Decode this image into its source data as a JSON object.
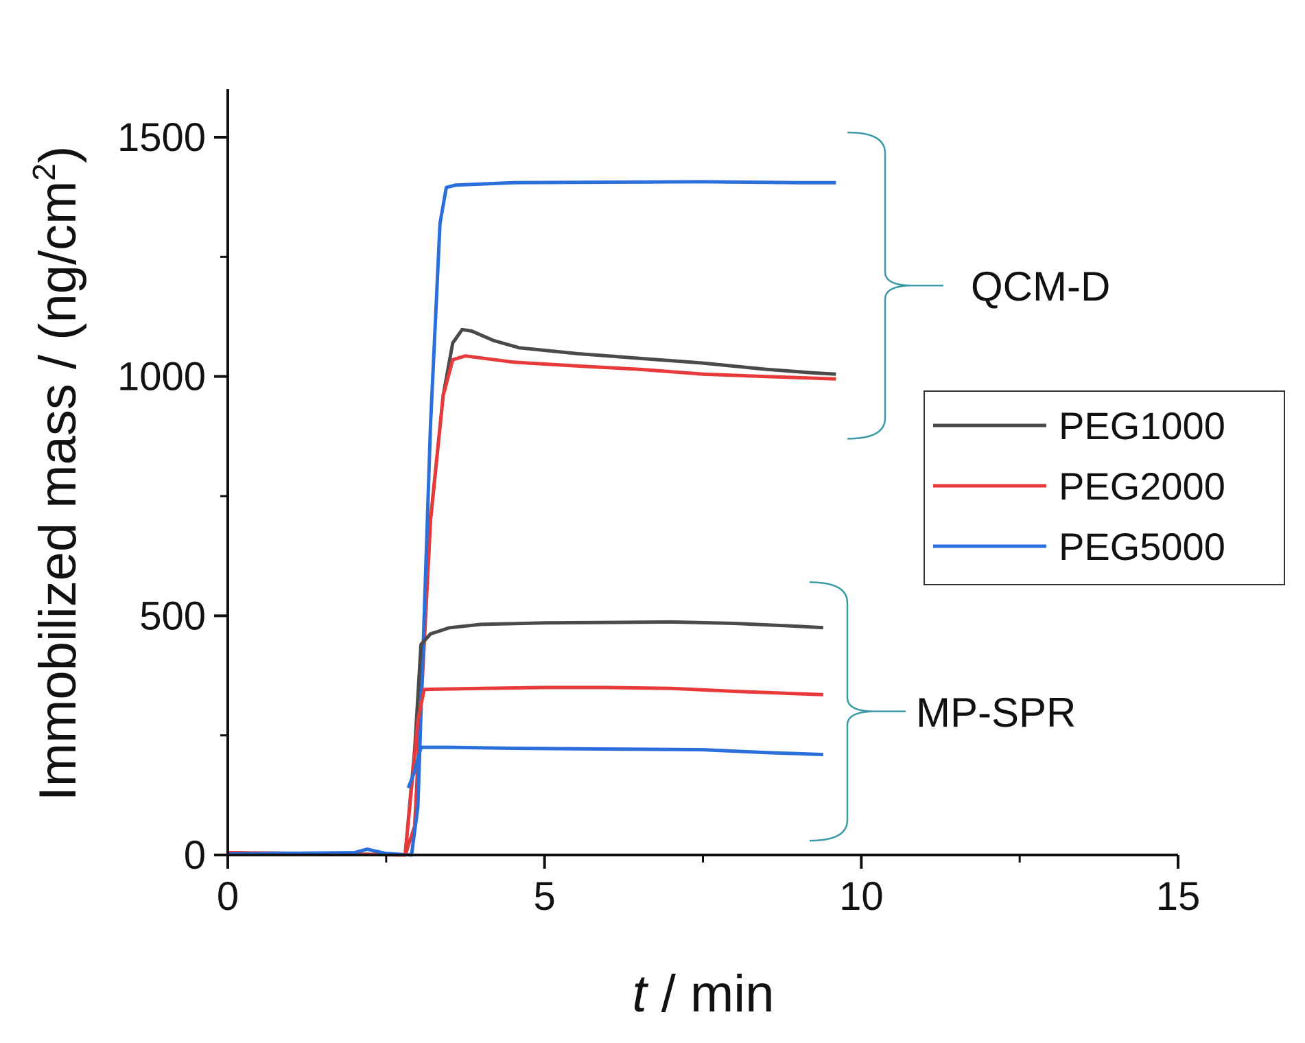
{
  "chart_data": {
    "type": "line",
    "title": "",
    "xlabel_italic": "t",
    "xlabel_rest": " / min",
    "ylabel_main": "Immobilized mass / (ng/cm",
    "ylabel_sup": "2",
    "ylabel_close": ")",
    "xlim": [
      0,
      15
    ],
    "ylim": [
      0,
      1500
    ],
    "x_ticks": [
      0,
      5,
      10,
      15
    ],
    "x_tick_labels": [
      "0",
      "5",
      "10",
      "15"
    ],
    "y_ticks": [
      0,
      500,
      1000,
      1500
    ],
    "y_tick_labels": [
      "0",
      "500",
      "1000",
      "1500"
    ],
    "grid": false,
    "legend_position": "right",
    "series": [
      {
        "name": "PEG1000",
        "method": "QCM-D",
        "color": "#4a4a4a",
        "points": [
          [
            0,
            5
          ],
          [
            2.0,
            2
          ],
          [
            2.8,
            0
          ],
          [
            2.95,
            60
          ],
          [
            3.2,
            700
          ],
          [
            3.4,
            960
          ],
          [
            3.55,
            1070
          ],
          [
            3.7,
            1098
          ],
          [
            3.85,
            1095
          ],
          [
            4.2,
            1075
          ],
          [
            4.6,
            1060
          ],
          [
            5.5,
            1048
          ],
          [
            6.5,
            1038
          ],
          [
            7.5,
            1028
          ],
          [
            8.5,
            1015
          ],
          [
            9.2,
            1008
          ],
          [
            9.6,
            1005
          ]
        ]
      },
      {
        "name": "PEG2000",
        "method": "QCM-D",
        "color": "#e83a3a",
        "points": [
          [
            0,
            5
          ],
          [
            1.0,
            3
          ],
          [
            2.8,
            0
          ],
          [
            2.95,
            60
          ],
          [
            3.2,
            700
          ],
          [
            3.4,
            960
          ],
          [
            3.55,
            1035
          ],
          [
            3.75,
            1043
          ],
          [
            4.5,
            1030
          ],
          [
            5.5,
            1022
          ],
          [
            6.5,
            1015
          ],
          [
            7.5,
            1005
          ],
          [
            8.5,
            1000
          ],
          [
            9.6,
            995
          ]
        ]
      },
      {
        "name": "PEG5000",
        "method": "QCM-D",
        "color": "#2a6fdb",
        "points": [
          [
            0,
            2
          ],
          [
            2.0,
            5
          ],
          [
            2.2,
            12
          ],
          [
            2.5,
            3
          ],
          [
            2.9,
            0
          ],
          [
            3.0,
            100
          ],
          [
            3.2,
            900
          ],
          [
            3.35,
            1320
          ],
          [
            3.45,
            1395
          ],
          [
            3.6,
            1400
          ],
          [
            4.5,
            1405
          ],
          [
            6.0,
            1406
          ],
          [
            7.5,
            1407
          ],
          [
            9.0,
            1405
          ],
          [
            9.6,
            1405
          ]
        ]
      },
      {
        "name": "PEG1000",
        "method": "MP-SPR",
        "color": "#4a4a4a",
        "points": [
          [
            2.8,
            0
          ],
          [
            2.95,
            220
          ],
          [
            3.05,
            440
          ],
          [
            3.2,
            462
          ],
          [
            3.5,
            475
          ],
          [
            4.0,
            482
          ],
          [
            5.0,
            485
          ],
          [
            6.0,
            486
          ],
          [
            7.0,
            487
          ],
          [
            8.0,
            484
          ],
          [
            9.0,
            478
          ],
          [
            9.4,
            475
          ]
        ]
      },
      {
        "name": "PEG2000",
        "method": "MP-SPR",
        "color": "#e83a3a",
        "points": [
          [
            2.8,
            0
          ],
          [
            3.0,
            280
          ],
          [
            3.1,
            346
          ],
          [
            4.0,
            348
          ],
          [
            5.0,
            350
          ],
          [
            6.0,
            350
          ],
          [
            7.0,
            348
          ],
          [
            8.0,
            342
          ],
          [
            9.0,
            337
          ],
          [
            9.4,
            335
          ]
        ]
      },
      {
        "name": "PEG5000",
        "method": "MP-SPR",
        "color": "#2a6fdb",
        "points": [
          [
            2.85,
            140
          ],
          [
            2.95,
            175
          ],
          [
            3.05,
            225
          ],
          [
            3.5,
            225
          ],
          [
            4.5,
            223
          ],
          [
            5.5,
            222
          ],
          [
            6.5,
            221
          ],
          [
            7.5,
            220
          ],
          [
            8.5,
            214
          ],
          [
            9.4,
            210
          ]
        ]
      }
    ],
    "legend": [
      {
        "label": "PEG1000",
        "color": "#4a4a4a"
      },
      {
        "label": "PEG2000",
        "color": "#e83a3a"
      },
      {
        "label": "PEG5000",
        "color": "#2a6fdb"
      }
    ],
    "annotations": [
      {
        "label": "QCM-D",
        "bracket_y_range": [
          870,
          1510
        ]
      },
      {
        "label": "MP-SPR",
        "bracket_y_range": [
          30,
          570
        ]
      }
    ]
  }
}
